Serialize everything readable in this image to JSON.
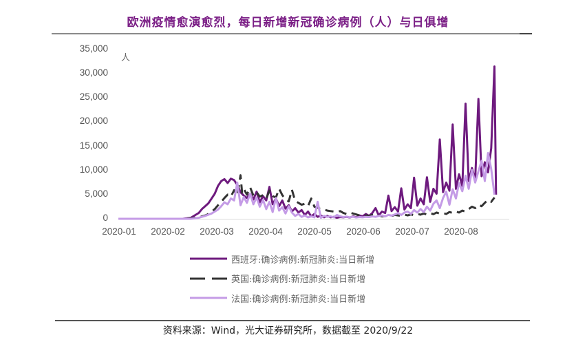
{
  "title": "欧洲疫情愈演愈烈，每日新增新冠确诊病例（人）与日俱增",
  "source": "资料来源：Wind，光大证券研究所，数据截至 2020/9/22",
  "chart_data": {
    "type": "line",
    "title": "欧洲疫情愈演愈烈，每日新增新冠确诊病例（人）与日俱增",
    "xlabel": "",
    "ylabel": "人",
    "ylim": [
      0,
      35000
    ],
    "yticks": [
      "0",
      "5,000",
      "10,000",
      "15,000",
      "20,000",
      "25,000",
      "30,000",
      "35,000"
    ],
    "ytick_values": [
      0,
      5000,
      10000,
      15000,
      20000,
      25000,
      30000,
      35000
    ],
    "xticks": [
      "2020-01",
      "2020-02",
      "2020-03",
      "2020-04",
      "2020-05",
      "2020-06",
      "2020-07",
      "2020-08"
    ],
    "x_unit": "day index from 2020-01-01",
    "grid": false,
    "legend_position": "bottom",
    "series": [
      {
        "name": "西班牙:确诊病例:新冠肺炎:当日新增",
        "color": "#6e1a7e",
        "style": "solid",
        "points": [
          [
            0,
            0
          ],
          [
            30,
            0
          ],
          [
            40,
            0
          ],
          [
            45,
            200
          ],
          [
            48,
            800
          ],
          [
            50,
            1200
          ],
          [
            52,
            2000
          ],
          [
            54,
            2600
          ],
          [
            56,
            3200
          ],
          [
            58,
            4200
          ],
          [
            60,
            5200
          ],
          [
            62,
            6800
          ],
          [
            64,
            7800
          ],
          [
            66,
            8200
          ],
          [
            68,
            7400
          ],
          [
            70,
            8300
          ],
          [
            72,
            8000
          ],
          [
            74,
            7000
          ],
          [
            76,
            5500
          ],
          [
            78,
            4800
          ],
          [
            80,
            4300
          ],
          [
            82,
            5200
          ],
          [
            84,
            4000
          ],
          [
            86,
            5600
          ],
          [
            88,
            3400
          ],
          [
            90,
            4700
          ],
          [
            92,
            3800
          ],
          [
            94,
            6600
          ],
          [
            96,
            3000
          ],
          [
            98,
            4200
          ],
          [
            100,
            2600
          ],
          [
            102,
            3800
          ],
          [
            104,
            2100
          ],
          [
            106,
            2800
          ],
          [
            108,
            1500
          ],
          [
            110,
            2200
          ],
          [
            112,
            1300
          ],
          [
            114,
            1800
          ],
          [
            116,
            800
          ],
          [
            118,
            1500
          ],
          [
            120,
            500
          ],
          [
            122,
            1000
          ],
          [
            124,
            400
          ],
          [
            126,
            700
          ],
          [
            128,
            300
          ],
          [
            130,
            600
          ],
          [
            132,
            300
          ],
          [
            134,
            400
          ],
          [
            136,
            200
          ],
          [
            138,
            350
          ],
          [
            140,
            300
          ],
          [
            142,
            400
          ],
          [
            144,
            250
          ],
          [
            146,
            500
          ],
          [
            148,
            300
          ],
          [
            150,
            700
          ],
          [
            152,
            500
          ],
          [
            154,
            1000
          ],
          [
            156,
            600
          ],
          [
            158,
            1200
          ],
          [
            160,
            2200
          ],
          [
            162,
            700
          ],
          [
            164,
            1500
          ],
          [
            166,
            1200
          ],
          [
            168,
            4800
          ],
          [
            170,
            1600
          ],
          [
            172,
            2400
          ],
          [
            174,
            1500
          ],
          [
            176,
            6300
          ],
          [
            178,
            1900
          ],
          [
            180,
            3000
          ],
          [
            182,
            2200
          ],
          [
            184,
            8500
          ],
          [
            186,
            2700
          ],
          [
            188,
            4200
          ],
          [
            190,
            3000
          ],
          [
            192,
            8600
          ],
          [
            194,
            3500
          ],
          [
            196,
            6200
          ],
          [
            198,
            5200
          ],
          [
            200,
            16400
          ],
          [
            202,
            5500
          ],
          [
            204,
            7500
          ],
          [
            206,
            5800
          ],
          [
            208,
            19500
          ],
          [
            210,
            6200
          ],
          [
            212,
            9200
          ],
          [
            214,
            6800
          ],
          [
            216,
            23800
          ],
          [
            218,
            7800
          ],
          [
            220,
            10500
          ],
          [
            222,
            8000
          ],
          [
            224,
            24800
          ],
          [
            226,
            8800
          ],
          [
            228,
            11700
          ],
          [
            230,
            9600
          ],
          [
            232,
            14600
          ],
          [
            234,
            31500
          ],
          [
            235,
            5000
          ]
        ]
      },
      {
        "name": "英国:确诊病例:新冠肺炎:当日新增",
        "color": "#333333",
        "style": "dashed",
        "points": [
          [
            0,
            0
          ],
          [
            40,
            0
          ],
          [
            45,
            100
          ],
          [
            50,
            300
          ],
          [
            55,
            800
          ],
          [
            58,
            1500
          ],
          [
            60,
            2000
          ],
          [
            62,
            2800
          ],
          [
            64,
            3500
          ],
          [
            66,
            4300
          ],
          [
            68,
            5000
          ],
          [
            70,
            4600
          ],
          [
            72,
            5900
          ],
          [
            74,
            4800
          ],
          [
            76,
            9000
          ],
          [
            77,
            5400
          ],
          [
            78,
            6200
          ],
          [
            80,
            5000
          ],
          [
            82,
            6500
          ],
          [
            84,
            4800
          ],
          [
            86,
            5500
          ],
          [
            88,
            4600
          ],
          [
            90,
            4900
          ],
          [
            92,
            4200
          ],
          [
            94,
            5800
          ],
          [
            96,
            4700
          ],
          [
            98,
            4400
          ],
          [
            100,
            6200
          ],
          [
            102,
            4900
          ],
          [
            104,
            4000
          ],
          [
            106,
            3600
          ],
          [
            108,
            6000
          ],
          [
            110,
            3700
          ],
          [
            112,
            3300
          ],
          [
            114,
            2900
          ],
          [
            116,
            3100
          ],
          [
            118,
            2600
          ],
          [
            120,
            4200
          ],
          [
            122,
            2500
          ],
          [
            124,
            2300
          ],
          [
            126,
            2000
          ],
          [
            128,
            1900
          ],
          [
            130,
            1700
          ],
          [
            132,
            1600
          ],
          [
            134,
            1500
          ],
          [
            136,
            1400
          ],
          [
            138,
            1600
          ],
          [
            140,
            1200
          ],
          [
            142,
            1000
          ],
          [
            144,
            1300
          ],
          [
            146,
            1100
          ],
          [
            148,
            900
          ],
          [
            150,
            700
          ],
          [
            152,
            800
          ],
          [
            154,
            700
          ],
          [
            156,
            600
          ],
          [
            158,
            800
          ],
          [
            160,
            600
          ],
          [
            162,
            700
          ],
          [
            164,
            500
          ],
          [
            166,
            550
          ],
          [
            168,
            650
          ],
          [
            170,
            600
          ],
          [
            172,
            800
          ],
          [
            174,
            700
          ],
          [
            176,
            600
          ],
          [
            178,
            850
          ],
          [
            180,
            700
          ],
          [
            182,
            900
          ],
          [
            184,
            750
          ],
          [
            186,
            1000
          ],
          [
            188,
            850
          ],
          [
            190,
            1100
          ],
          [
            192,
            900
          ],
          [
            194,
            1200
          ],
          [
            196,
            950
          ],
          [
            198,
            1300
          ],
          [
            200,
            1050
          ],
          [
            202,
            1200
          ],
          [
            204,
            1000
          ],
          [
            206,
            1400
          ],
          [
            208,
            1200
          ],
          [
            210,
            1500
          ],
          [
            212,
            1300
          ],
          [
            214,
            1700
          ],
          [
            216,
            1500
          ],
          [
            218,
            2000
          ],
          [
            220,
            2500
          ],
          [
            222,
            2200
          ],
          [
            224,
            2900
          ],
          [
            226,
            2600
          ],
          [
            228,
            3300
          ],
          [
            230,
            3900
          ],
          [
            232,
            3500
          ],
          [
            234,
            4400
          ]
        ]
      },
      {
        "name": "法国:确诊病例:新冠肺炎:当日新增",
        "color": "#c49be6",
        "style": "solid",
        "points": [
          [
            0,
            0
          ],
          [
            30,
            0
          ],
          [
            45,
            0
          ],
          [
            50,
            200
          ],
          [
            54,
            600
          ],
          [
            58,
            1100
          ],
          [
            60,
            1500
          ],
          [
            62,
            1900
          ],
          [
            64,
            2600
          ],
          [
            66,
            3400
          ],
          [
            68,
            3000
          ],
          [
            70,
            4200
          ],
          [
            72,
            3800
          ],
          [
            74,
            7500
          ],
          [
            76,
            2800
          ],
          [
            78,
            4500
          ],
          [
            80,
            3300
          ],
          [
            82,
            5200
          ],
          [
            84,
            3000
          ],
          [
            86,
            4400
          ],
          [
            88,
            2500
          ],
          [
            90,
            3900
          ],
          [
            92,
            2000
          ],
          [
            94,
            3500
          ],
          [
            96,
            1400
          ],
          [
            98,
            4300
          ],
          [
            100,
            1700
          ],
          [
            102,
            2400
          ],
          [
            104,
            1100
          ],
          [
            106,
            2600
          ],
          [
            108,
            1300
          ],
          [
            110,
            600
          ],
          [
            112,
            1000
          ],
          [
            114,
            400
          ],
          [
            116,
            700
          ],
          [
            118,
            300
          ],
          [
            120,
            500
          ],
          [
            122,
            300
          ],
          [
            124,
            3500
          ],
          [
            126,
            200
          ],
          [
            128,
            600
          ],
          [
            130,
            400
          ],
          [
            132,
            500
          ],
          [
            134,
            300
          ],
          [
            136,
            800
          ],
          [
            138,
            500
          ],
          [
            140,
            350
          ],
          [
            142,
            450
          ],
          [
            144,
            300
          ],
          [
            146,
            400
          ],
          [
            148,
            250
          ],
          [
            150,
            350
          ],
          [
            152,
            300
          ],
          [
            154,
            400
          ],
          [
            156,
            350
          ],
          [
            158,
            500
          ],
          [
            160,
            400
          ],
          [
            162,
            600
          ],
          [
            164,
            700
          ],
          [
            166,
            500
          ],
          [
            168,
            800
          ],
          [
            170,
            650
          ],
          [
            172,
            900
          ],
          [
            174,
            1200
          ],
          [
            176,
            800
          ],
          [
            178,
            1300
          ],
          [
            180,
            1500
          ],
          [
            182,
            1000
          ],
          [
            184,
            1800
          ],
          [
            186,
            1300
          ],
          [
            188,
            2000
          ],
          [
            190,
            1400
          ],
          [
            192,
            2500
          ],
          [
            194,
            1700
          ],
          [
            196,
            3100
          ],
          [
            198,
            3800
          ],
          [
            200,
            2200
          ],
          [
            202,
            4300
          ],
          [
            204,
            5600
          ],
          [
            206,
            2900
          ],
          [
            208,
            6100
          ],
          [
            210,
            4200
          ],
          [
            212,
            7400
          ],
          [
            214,
            5700
          ],
          [
            216,
            8900
          ],
          [
            218,
            6200
          ],
          [
            220,
            10100
          ],
          [
            222,
            7500
          ],
          [
            224,
            9800
          ],
          [
            226,
            12000
          ],
          [
            228,
            7800
          ],
          [
            230,
            13600
          ],
          [
            232,
            10300
          ],
          [
            234,
            5000
          ]
        ]
      }
    ]
  },
  "legend": [
    {
      "label": "西班牙:确诊病例:新冠肺炎:当日新增"
    },
    {
      "label": "英国:确诊病例:新冠肺炎:当日新增"
    },
    {
      "label": "法国:确诊病例:新冠肺炎:当日新增"
    }
  ]
}
